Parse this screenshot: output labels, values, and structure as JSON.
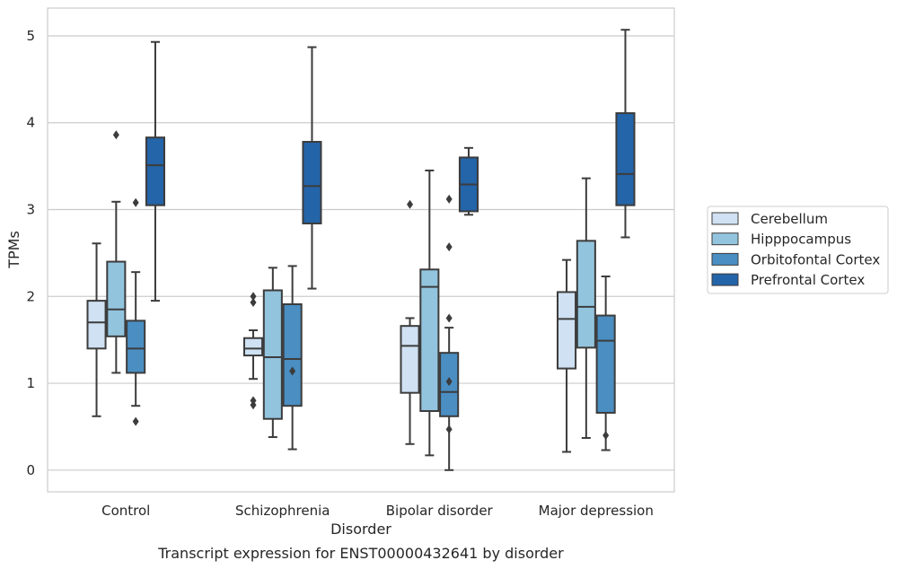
{
  "chart_data": {
    "type": "box",
    "title": "",
    "caption": "Transcript expression for ENST00000432641 by disorder",
    "xlabel": "Disorder",
    "ylabel": "TPMs",
    "ylim": [
      -0.25,
      5.32
    ],
    "yticks": [
      0,
      1,
      2,
      3,
      4,
      5
    ],
    "grid": "horizontal",
    "legend_position": "right",
    "categories": [
      "Control",
      "Schizophrenia",
      "Bipolar disorder",
      "Major depression"
    ],
    "series": [
      {
        "name": "Cerebellum",
        "color": "#cfe1f2",
        "boxes": [
          {
            "whislo": 0.62,
            "q1": 1.4,
            "med": 1.7,
            "q3": 1.95,
            "whishi": 2.61,
            "fliers": []
          },
          {
            "whislo": 1.05,
            "q1": 1.32,
            "med": 1.4,
            "q3": 1.52,
            "whishi": 1.61,
            "fliers": [
              0.75,
              0.8,
              1.93,
              2.0
            ]
          },
          {
            "whislo": 0.3,
            "q1": 0.89,
            "med": 1.43,
            "q3": 1.66,
            "whishi": 1.75,
            "fliers": [
              3.06
            ]
          },
          {
            "whislo": 0.21,
            "q1": 1.17,
            "med": 1.74,
            "q3": 2.05,
            "whishi": 2.42,
            "fliers": []
          }
        ]
      },
      {
        "name": "Hipppocampus",
        "color": "#93c4de",
        "boxes": [
          {
            "whislo": 1.12,
            "q1": 1.54,
            "med": 1.85,
            "q3": 2.4,
            "whishi": 3.09,
            "fliers": [
              3.86
            ]
          },
          {
            "whislo": 0.38,
            "q1": 0.59,
            "med": 1.3,
            "q3": 2.07,
            "whishi": 2.33,
            "fliers": []
          },
          {
            "whislo": 0.17,
            "q1": 0.68,
            "med": 2.11,
            "q3": 2.31,
            "whishi": 3.45,
            "fliers": []
          },
          {
            "whislo": 0.37,
            "q1": 1.41,
            "med": 1.88,
            "q3": 2.64,
            "whishi": 3.36,
            "fliers": []
          }
        ]
      },
      {
        "name": "Orbitofontal Cortex",
        "color": "#4a8ec2",
        "boxes": [
          {
            "whislo": 0.74,
            "q1": 1.12,
            "med": 1.4,
            "q3": 1.72,
            "whishi": 2.28,
            "fliers": [
              0.56,
              3.08
            ]
          },
          {
            "whislo": 0.24,
            "q1": 0.74,
            "med": 1.28,
            "q3": 1.91,
            "whishi": 2.35,
            "fliers": [
              1.14
            ]
          },
          {
            "whislo": 0.0,
            "q1": 0.62,
            "med": 0.9,
            "q3": 1.35,
            "whishi": 1.64,
            "fliers": [
              0.47,
              1.02,
              1.75,
              2.57,
              3.12
            ]
          },
          {
            "whislo": 0.23,
            "q1": 0.66,
            "med": 1.49,
            "q3": 1.78,
            "whishi": 2.23,
            "fliers": [
              0.4
            ]
          }
        ]
      },
      {
        "name": "Prefrontal Cortex",
        "color": "#2464a8",
        "boxes": [
          {
            "whislo": 1.95,
            "q1": 3.05,
            "med": 3.51,
            "q3": 3.83,
            "whishi": 4.93,
            "fliers": []
          },
          {
            "whislo": 2.09,
            "q1": 2.84,
            "med": 3.27,
            "q3": 3.78,
            "whishi": 4.87,
            "fliers": []
          },
          {
            "whislo": 2.94,
            "q1": 2.98,
            "med": 3.29,
            "q3": 3.6,
            "whishi": 3.71,
            "fliers": []
          },
          {
            "whislo": 2.68,
            "q1": 3.05,
            "med": 3.41,
            "q3": 4.11,
            "whishi": 5.07,
            "fliers": []
          }
        ]
      }
    ]
  }
}
